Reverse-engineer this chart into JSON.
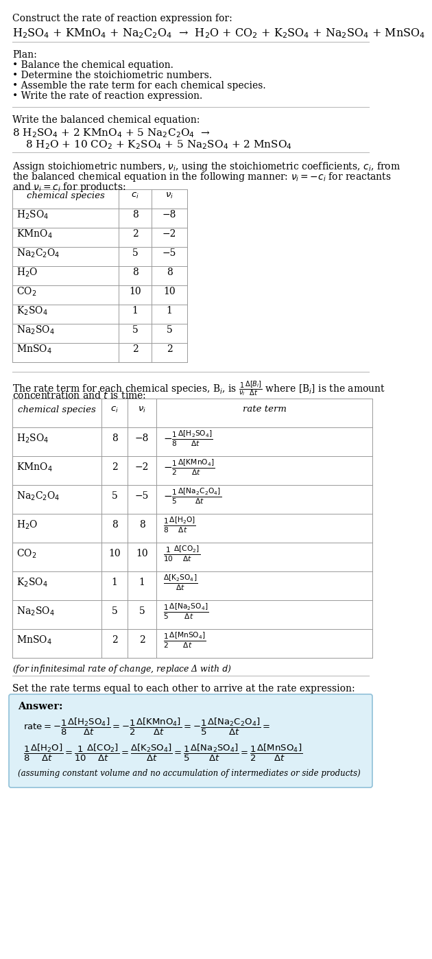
{
  "bg_color": "#ffffff",
  "answer_bg": "#ddf0f8",
  "answer_border": "#90c0d8",
  "title_line1": "Construct the rate of reaction expression for:",
  "title_eq": "H$_2$SO$_4$ + KMnO$_4$ + Na$_2$C$_2$O$_4$  →  H$_2$O + CO$_2$ + K$_2$SO$_4$ + Na$_2$SO$_4$ + MnSO$_4$",
  "plan_header": "Plan:",
  "plan_items": [
    "• Balance the chemical equation.",
    "• Determine the stoichiometric numbers.",
    "• Assemble the rate term for each chemical species.",
    "• Write the rate of reaction expression."
  ],
  "section2_header": "Write the balanced chemical equation:",
  "balanced_line1": "8 H$_2$SO$_4$ + 2 KMnO$_4$ + 5 Na$_2$C$_2$O$_4$  →",
  "balanced_line2": "    8 H$_2$O + 10 CO$_2$ + K$_2$SO$_4$ + 5 Na$_2$SO$_4$ + 2 MnSO$_4$",
  "section3_text1": "Assign stoichiometric numbers, $\\nu_i$, using the stoichiometric coefficients, $c_i$, from",
  "section3_text2": "the balanced chemical equation in the following manner: $\\nu_i = -c_i$ for reactants",
  "section3_text3": "and $\\nu_i = c_i$ for products:",
  "table1_headers": [
    "chemical species",
    "$c_i$",
    "$\\nu_i$"
  ],
  "table1_rows": [
    [
      "H$_2$SO$_4$",
      "8",
      "−8"
    ],
    [
      "KMnO$_4$",
      "2",
      "−2"
    ],
    [
      "Na$_2$C$_2$O$_4$",
      "5",
      "−5"
    ],
    [
      "H$_2$O",
      "8",
      "8"
    ],
    [
      "CO$_2$",
      "10",
      "10"
    ],
    [
      "K$_2$SO$_4$",
      "1",
      "1"
    ],
    [
      "Na$_2$SO$_4$",
      "5",
      "5"
    ],
    [
      "MnSO$_4$",
      "2",
      "2"
    ]
  ],
  "section4_text1": "The rate term for each chemical species, B$_i$, is $\\frac{1}{\\nu_i}\\frac{\\Delta[B_i]}{\\Delta t}$ where [B$_i$] is the amount",
  "section4_text2": "concentration and $t$ is time:",
  "table2_headers": [
    "chemical species",
    "$c_i$",
    "$\\nu_i$",
    "rate term"
  ],
  "table2_rows": [
    [
      "H$_2$SO$_4$",
      "8",
      "−8",
      "$-\\frac{1}{8}\\frac{\\Delta[\\mathrm{H_2SO_4}]}{\\Delta t}$"
    ],
    [
      "KMnO$_4$",
      "2",
      "−2",
      "$-\\frac{1}{2}\\frac{\\Delta[\\mathrm{KMnO_4}]}{\\Delta t}$"
    ],
    [
      "Na$_2$C$_2$O$_4$",
      "5",
      "−5",
      "$-\\frac{1}{5}\\frac{\\Delta[\\mathrm{Na_2C_2O_4}]}{\\Delta t}$"
    ],
    [
      "H$_2$O",
      "8",
      "8",
      "$\\frac{1}{8}\\frac{\\Delta[\\mathrm{H_2O}]}{\\Delta t}$"
    ],
    [
      "CO$_2$",
      "10",
      "10",
      "$\\frac{1}{10}\\frac{\\Delta[\\mathrm{CO_2}]}{\\Delta t}$"
    ],
    [
      "K$_2$SO$_4$",
      "1",
      "1",
      "$\\frac{\\Delta[\\mathrm{K_2SO_4}]}{\\Delta t}$"
    ],
    [
      "Na$_2$SO$_4$",
      "5",
      "5",
      "$\\frac{1}{5}\\frac{\\Delta[\\mathrm{Na_2SO_4}]}{\\Delta t}$"
    ],
    [
      "MnSO$_4$",
      "2",
      "2",
      "$\\frac{1}{2}\\frac{\\Delta[\\mathrm{MnSO_4}]}{\\Delta t}$"
    ]
  ],
  "infinitesimal_note": "(for infinitesimal rate of change, replace Δ with $d$)",
  "section5_text": "Set the rate terms equal to each other to arrive at the rate expression:",
  "answer_label": "Answer:",
  "answer_line1": "$\\mathrm{rate} = -\\dfrac{1}{8}\\dfrac{\\Delta[\\mathrm{H_2SO_4}]}{\\Delta t} = -\\dfrac{1}{2}\\dfrac{\\Delta[\\mathrm{KMnO_4}]}{\\Delta t} = -\\dfrac{1}{5}\\dfrac{\\Delta[\\mathrm{Na_2C_2O_4}]}{\\Delta t} =$",
  "answer_line2": "$\\dfrac{1}{8}\\dfrac{\\Delta[\\mathrm{H_2O}]}{\\Delta t} = \\dfrac{1}{10}\\dfrac{\\Delta[\\mathrm{CO_2}]}{\\Delta t} = \\dfrac{\\Delta[\\mathrm{K_2SO_4}]}{\\Delta t} = \\dfrac{1}{5}\\dfrac{\\Delta[\\mathrm{Na_2SO_4}]}{\\Delta t} = \\dfrac{1}{2}\\dfrac{\\Delta[\\mathrm{MnSO_4}]}{\\Delta t}$",
  "answer_note": "(assuming constant volume and no accumulation of intermediates or side products)"
}
